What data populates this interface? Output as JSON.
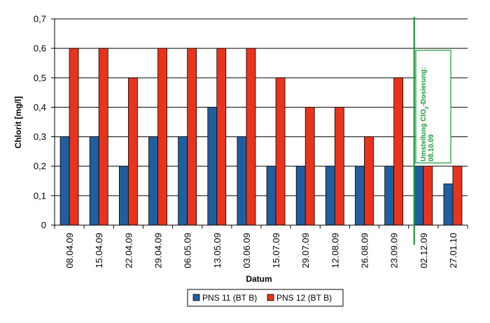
{
  "chart_data": {
    "type": "bar",
    "xlabel": "Datum",
    "ylabel": "Chlorit [mg/l]",
    "ylim": [
      0,
      0.7
    ],
    "yticks": [
      "0",
      "0,1",
      "0,2",
      "0,3",
      "0,4",
      "0,5",
      "0,6",
      "0,7"
    ],
    "grid": "horizontal",
    "legend_position": "bottom",
    "categories": [
      "08.04.09",
      "15.04.09",
      "22.04.09",
      "29.04.09",
      "06.05.09",
      "13.05.09",
      "03.06.09",
      "15.07.09",
      "29.07.09",
      "12.08.09",
      "26.08.09",
      "23.09.09",
      "02.12.09",
      "27.01.10"
    ],
    "series": [
      {
        "name": "PNS 11 (BT B)",
        "color": "#1f5fa0",
        "values": [
          0.3,
          0.3,
          0.2,
          0.3,
          0.3,
          0.4,
          0.3,
          0.2,
          0.2,
          0.2,
          0.2,
          0.2,
          0.2,
          0.14
        ]
      },
      {
        "name": "PNS 12 (BT B)",
        "color": "#e8341c",
        "values": [
          0.6,
          0.6,
          0.5,
          0.6,
          0.6,
          0.6,
          0.6,
          0.5,
          0.4,
          0.4,
          0.3,
          0.5,
          0.2,
          0.2
        ]
      }
    ],
    "annotation": {
      "line1_prefix": "Umstellung ClO",
      "line1_subscript": "2",
      "line1_suffix": "-Dosierung:",
      "line2": "08.10.09",
      "color": "#1a9a3a",
      "after_category_index": 11
    }
  }
}
